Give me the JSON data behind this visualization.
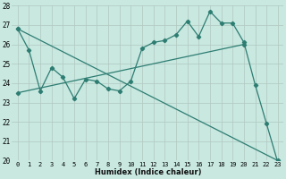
{
  "xlabel": "Humidex (Indice chaleur)",
  "xlim": [
    -0.5,
    23.5
  ],
  "ylim": [
    20,
    28
  ],
  "yticks": [
    20,
    21,
    22,
    23,
    24,
    25,
    26,
    27,
    28
  ],
  "xticks": [
    0,
    1,
    2,
    3,
    4,
    5,
    6,
    7,
    8,
    9,
    10,
    11,
    12,
    13,
    14,
    15,
    16,
    17,
    18,
    19,
    20,
    21,
    22,
    23
  ],
  "bg_color": "#c8e8e0",
  "grid_color": "#b0c8c0",
  "line_color": "#2e7d72",
  "series1_x": [
    0,
    1,
    2,
    3,
    4,
    5,
    6,
    7,
    8,
    9,
    10,
    11,
    12,
    13,
    14,
    15,
    16,
    17,
    18,
    19,
    20,
    21,
    22,
    23
  ],
  "series1_y": [
    26.8,
    25.7,
    23.6,
    24.8,
    24.3,
    23.2,
    24.2,
    24.1,
    23.7,
    23.6,
    24.1,
    25.8,
    26.1,
    26.2,
    26.5,
    27.2,
    26.4,
    27.7,
    27.1,
    27.1,
    26.1,
    23.9,
    21.9,
    19.9
  ]
}
